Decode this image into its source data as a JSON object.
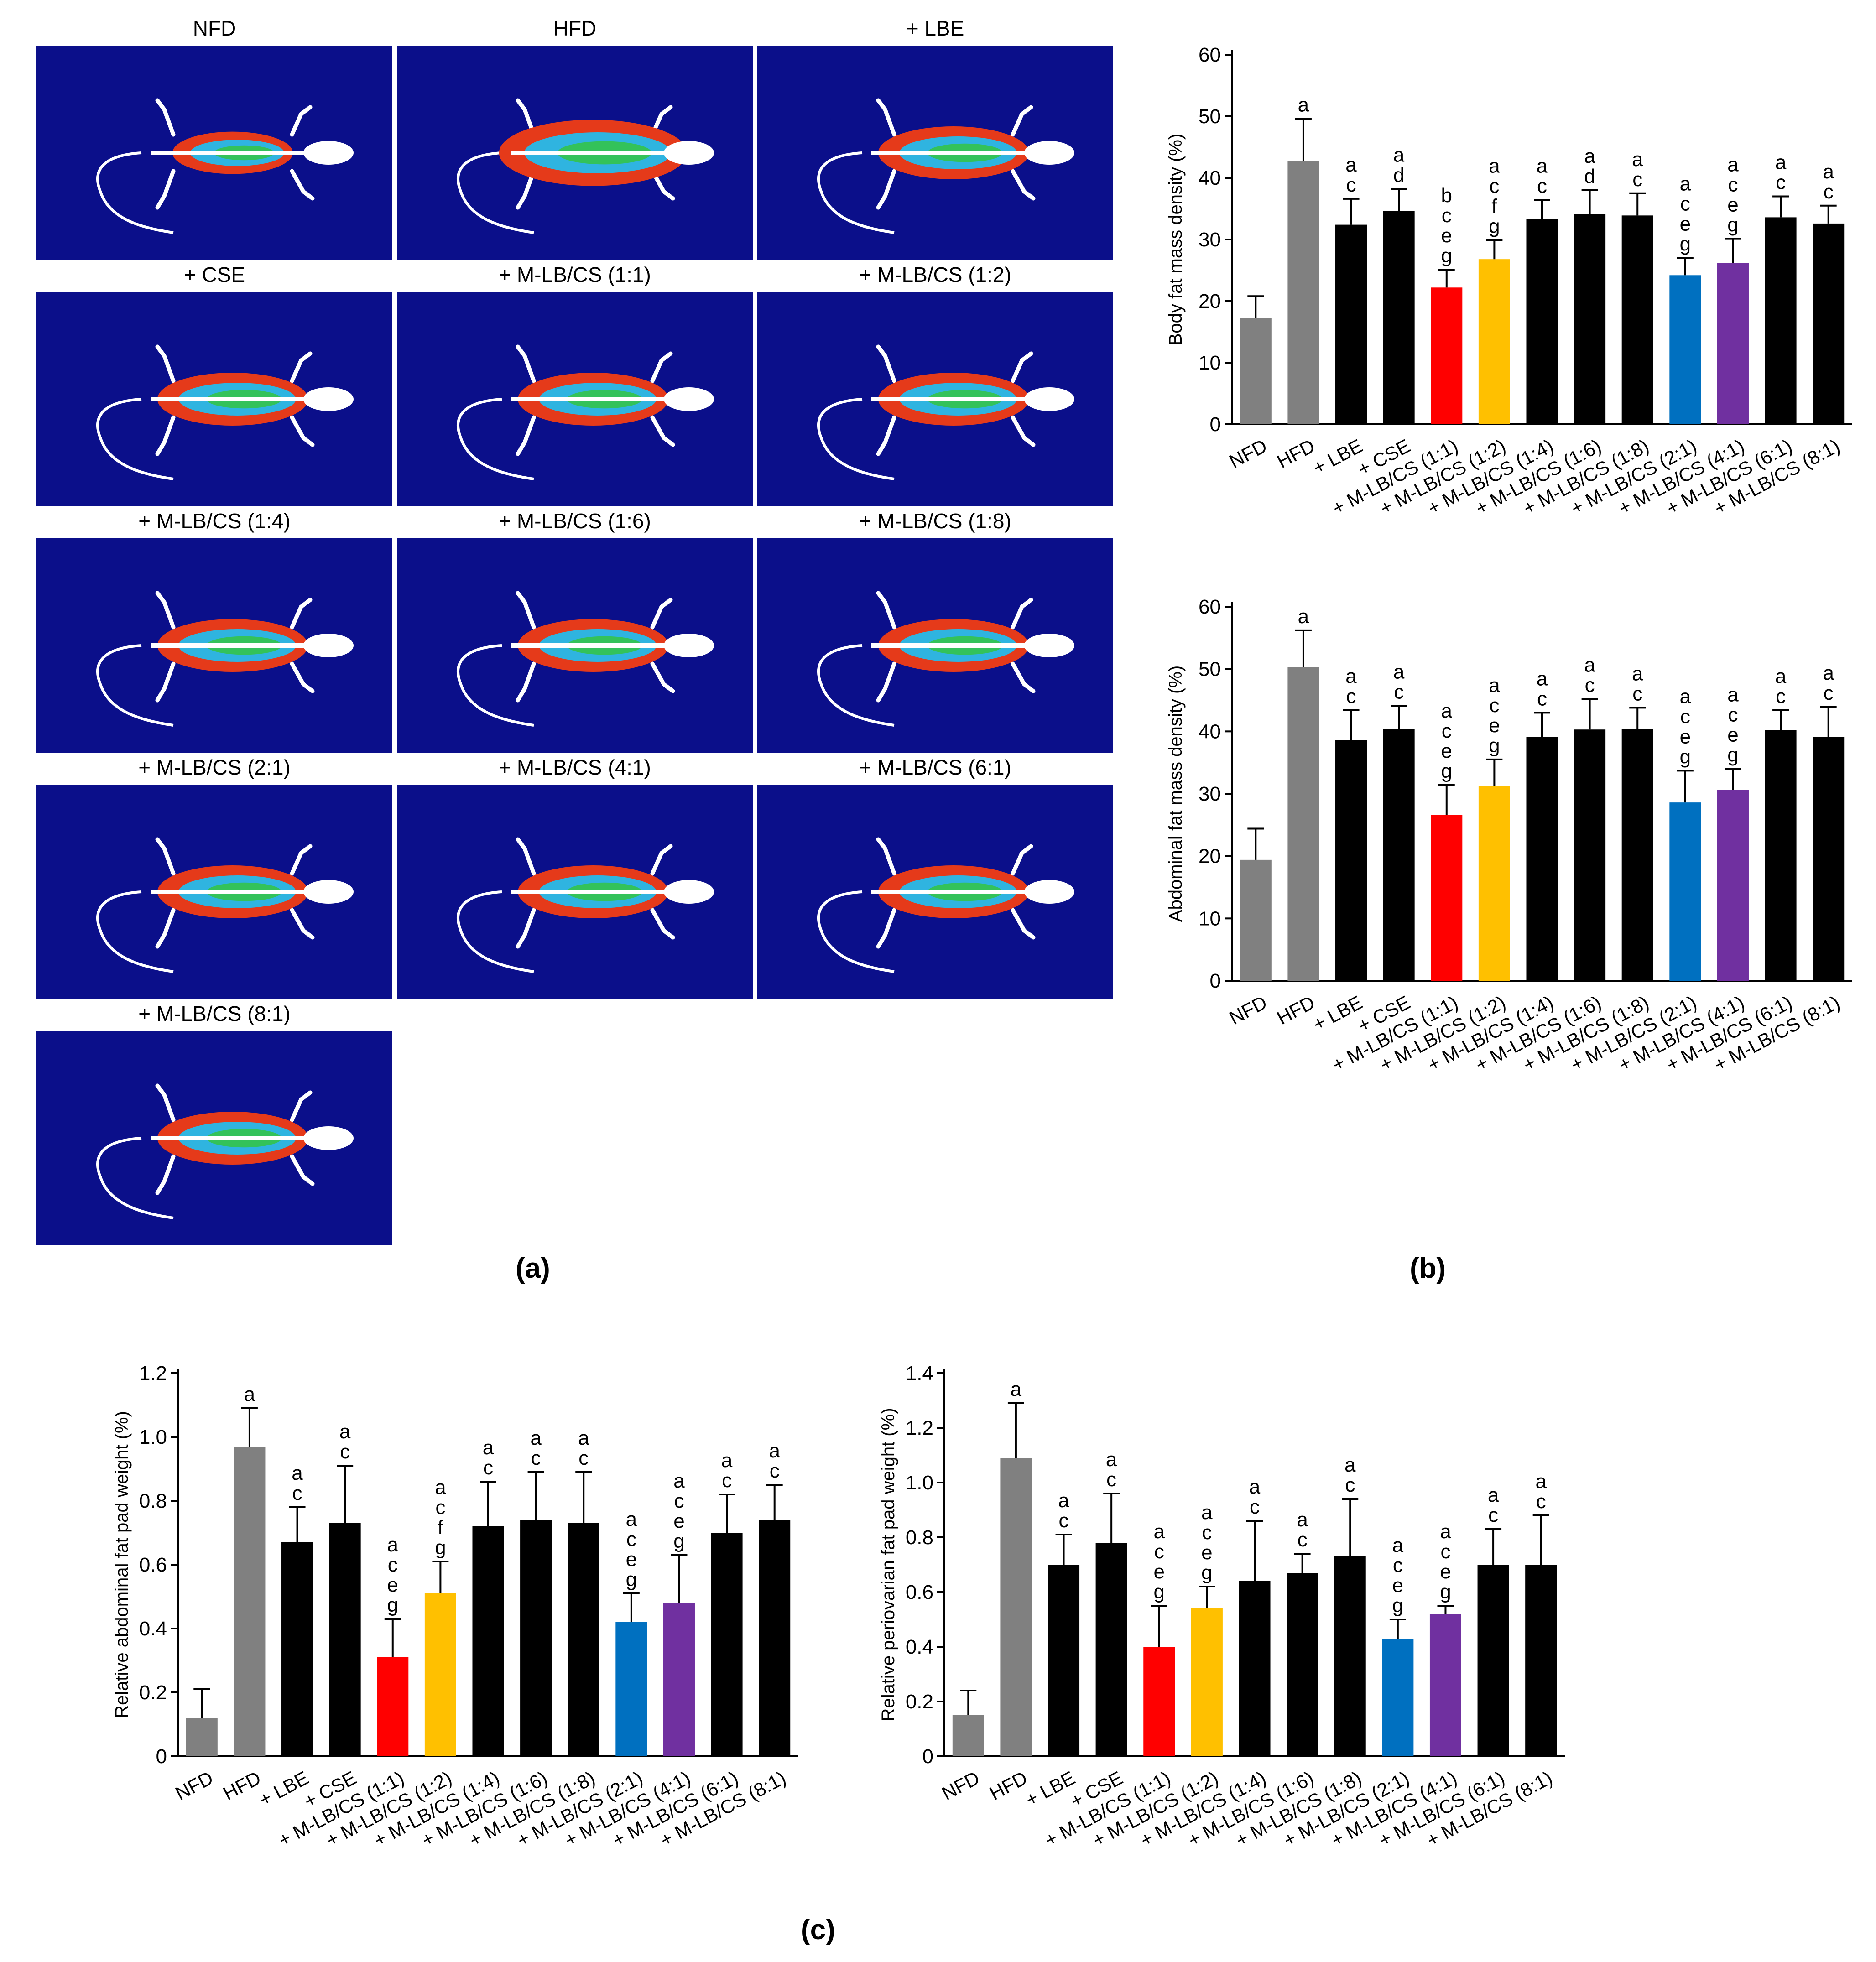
{
  "panels": {
    "a": {
      "label": "(a)",
      "images": [
        "NFD",
        "HFD",
        "+ LBE",
        "+ CSE",
        "+ M-LB/CS (1:1)",
        "+ M-LB/CS (1:2)",
        "+ M-LB/CS (1:4)",
        "+ M-LB/CS (1:6)",
        "+ M-LB/CS (1:8)",
        "+ M-LB/CS (2:1)",
        "+ M-LB/CS (4:1)",
        "+ M-LB/CS (6:1)",
        "+ M-LB/CS (8:1)"
      ]
    },
    "b": {
      "label": "(b)"
    },
    "c": {
      "label": "(c)"
    }
  },
  "colors": {
    "gray": "#808080",
    "black": "#000000",
    "red": "#ff0000",
    "yellow": "#ffc000",
    "blue": "#0070c0",
    "purple": "#7030a0",
    "imageBackground": "#0b0f8a"
  },
  "chart_data": [
    {
      "id": "body-fat",
      "type": "bar",
      "ylabel": "Body fat mass density (%)",
      "ylim": [
        0,
        60
      ],
      "yticks": [
        "0",
        "10",
        "20",
        "30",
        "40",
        "50",
        "60"
      ],
      "categories": [
        "NFD",
        "HFD",
        "+ LBE",
        "+ CSE",
        "+ M-LB/CS (1:1)",
        "+ M-LB/CS (1:2)",
        "+ M-LB/CS (1:4)",
        "+ M-LB/CS (1:6)",
        "+ M-LB/CS (1:8)",
        "+ M-LB/CS (2:1)",
        "+ M-LB/CS (4:1)",
        "+ M-LB/CS (6:1)",
        "+ M-LB/CS (8:1)"
      ],
      "values": [
        17.2,
        42.8,
        32.4,
        34.6,
        22.2,
        26.8,
        33.3,
        34.1,
        33.9,
        24.2,
        26.2,
        33.6,
        32.6
      ],
      "errors": [
        3.6,
        6.8,
        4.2,
        3.6,
        2.9,
        3.1,
        3.1,
        3.9,
        3.6,
        2.8,
        3.9,
        3.4,
        2.9
      ],
      "colors": [
        "gray",
        "gray",
        "black",
        "black",
        "red",
        "yellow",
        "black",
        "black",
        "black",
        "blue",
        "purple",
        "black",
        "black"
      ],
      "letters": [
        "",
        "a",
        "a c",
        "a d",
        "b c e g",
        "a c f g",
        "a c",
        "a d",
        "a c",
        "a c e g",
        "a c e g",
        "a c",
        "a c"
      ]
    },
    {
      "id": "abdominal-fat",
      "type": "bar",
      "ylabel": "Abdominal fat mass density (%)",
      "ylim": [
        0,
        60
      ],
      "yticks": [
        "0",
        "10",
        "20",
        "30",
        "40",
        "50",
        "60"
      ],
      "categories": [
        "NFD",
        "HFD",
        "+ LBE",
        "+ CSE",
        "+ M-LB/CS (1:1)",
        "+ M-LB/CS (1:2)",
        "+ M-LB/CS (1:4)",
        "+ M-LB/CS (1:6)",
        "+ M-LB/CS (1:8)",
        "+ M-LB/CS (2:1)",
        "+ M-LB/CS (4:1)",
        "+ M-LB/CS (6:1)",
        "+ M-LB/CS (8:1)"
      ],
      "values": [
        19.4,
        50.3,
        38.6,
        40.4,
        26.6,
        31.3,
        39.1,
        40.3,
        40.4,
        28.6,
        30.6,
        40.2,
        39.1
      ],
      "errors": [
        5.0,
        5.9,
        4.8,
        3.7,
        4.8,
        4.2,
        3.9,
        4.9,
        3.4,
        5.1,
        3.4,
        3.2,
        4.8
      ],
      "colors": [
        "gray",
        "gray",
        "black",
        "black",
        "red",
        "yellow",
        "black",
        "black",
        "black",
        "blue",
        "purple",
        "black",
        "black"
      ],
      "letters": [
        "",
        "a",
        "a c",
        "a c",
        "a c e g",
        "a c e g",
        "a c",
        "a c",
        "a c",
        "a c e g",
        "a c e g",
        "a c",
        "a c"
      ]
    },
    {
      "id": "rel-abdominal",
      "type": "bar",
      "ylabel": "Relative abdominal fat pad weight (%)",
      "ylim": [
        0,
        1.2
      ],
      "yticks": [
        "0",
        "0.2",
        "0.4",
        "0.6",
        "0.8",
        "1.0",
        "1.2"
      ],
      "categories": [
        "NFD",
        "HFD",
        "+ LBE",
        "+ CSE",
        "+ M-LB/CS (1:1)",
        "+ M-LB/CS (1:2)",
        "+ M-LB/CS (1:4)",
        "+ M-LB/CS (1:6)",
        "+ M-LB/CS (1:8)",
        "+ M-LB/CS (2:1)",
        "+ M-LB/CS (4:1)",
        "+ M-LB/CS (6:1)",
        "+ M-LB/CS (8:1)"
      ],
      "values": [
        0.12,
        0.97,
        0.67,
        0.73,
        0.31,
        0.51,
        0.72,
        0.74,
        0.73,
        0.42,
        0.48,
        0.7,
        0.74
      ],
      "errors": [
        0.09,
        0.12,
        0.11,
        0.18,
        0.12,
        0.1,
        0.14,
        0.15,
        0.16,
        0.09,
        0.15,
        0.12,
        0.11
      ],
      "colors": [
        "gray",
        "gray",
        "black",
        "black",
        "red",
        "yellow",
        "black",
        "black",
        "black",
        "blue",
        "purple",
        "black",
        "black"
      ],
      "letters": [
        "",
        "a",
        "a c",
        "a c",
        "a c e g",
        "a c f g",
        "a c",
        "a c",
        "a c",
        "a c e g",
        "a c e g",
        "a c",
        "a c"
      ]
    },
    {
      "id": "rel-periovarian",
      "type": "bar",
      "ylabel": "Relative periovarian fat pad weight (%)",
      "ylim": [
        0,
        1.4
      ],
      "yticks": [
        "0",
        "0.2",
        "0.4",
        "0.6",
        "0.8",
        "1.0",
        "1.2",
        "1.4"
      ],
      "categories": [
        "NFD",
        "HFD",
        "+ LBE",
        "+ CSE",
        "+ M-LB/CS (1:1)",
        "+ M-LB/CS (1:2)",
        "+ M-LB/CS (1:4)",
        "+ M-LB/CS (1:6)",
        "+ M-LB/CS (1:8)",
        "+ M-LB/CS (2:1)",
        "+ M-LB/CS (4:1)",
        "+ M-LB/CS (6:1)",
        "+ M-LB/CS (8:1)"
      ],
      "values": [
        0.15,
        1.09,
        0.7,
        0.78,
        0.4,
        0.54,
        0.64,
        0.67,
        0.73,
        0.43,
        0.52,
        0.7,
        0.7
      ],
      "errors": [
        0.09,
        0.2,
        0.11,
        0.18,
        0.15,
        0.08,
        0.22,
        0.07,
        0.21,
        0.07,
        0.03,
        0.13,
        0.18
      ],
      "colors": [
        "gray",
        "gray",
        "black",
        "black",
        "red",
        "yellow",
        "black",
        "black",
        "black",
        "blue",
        "purple",
        "black",
        "black"
      ],
      "letters": [
        "",
        "a",
        "a c",
        "a c",
        "a c e g",
        "a c e g",
        "a c",
        "a c",
        "a c",
        "a c e g",
        "a c e g",
        "a c",
        "a c"
      ]
    }
  ]
}
